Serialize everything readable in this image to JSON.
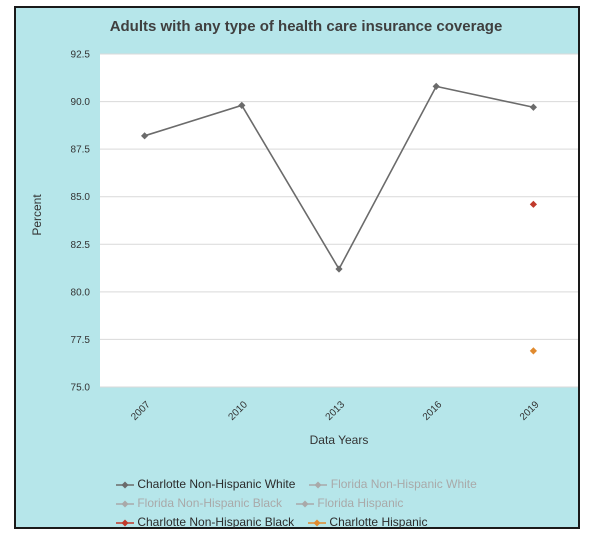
{
  "chart_data": {
    "type": "line",
    "title": "Adults with any type of health care insurance coverage",
    "xlabel": "Data Years",
    "ylabel": "Percent",
    "categories": [
      "2007",
      "2010",
      "2013",
      "2016",
      "2019"
    ],
    "y_ticks": [
      "92.5",
      "90.0",
      "87.5",
      "85.0",
      "82.5",
      "80.0",
      "77.5",
      "75.0"
    ],
    "ylim": [
      75.0,
      92.5
    ],
    "grid": true,
    "legend_position": "bottom",
    "series": [
      {
        "name": "Charlotte Non-Hispanic White",
        "color": "#6b6b6b",
        "values": [
          88.2,
          89.8,
          81.2,
          90.8,
          89.7
        ],
        "legend_active": true
      },
      {
        "name": "Florida Non-Hispanic White",
        "color": "#a9a9a9",
        "values": [
          null,
          null,
          null,
          null,
          null
        ],
        "legend_active": false
      },
      {
        "name": "Florida Non-Hispanic Black",
        "color": "#a9a9a9",
        "values": [
          null,
          null,
          null,
          null,
          null
        ],
        "legend_active": false
      },
      {
        "name": "Florida Hispanic",
        "color": "#a9a9a9",
        "values": [
          null,
          null,
          null,
          null,
          null
        ],
        "legend_active": false
      },
      {
        "name": "Charlotte Non-Hispanic Black",
        "color": "#c0392b",
        "values": [
          null,
          null,
          null,
          null,
          84.6
        ],
        "legend_active": true
      },
      {
        "name": "Charlotte Hispanic",
        "color": "#e08a2e",
        "values": [
          null,
          null,
          null,
          null,
          76.9
        ],
        "legend_active": true
      }
    ]
  },
  "legend_rows": [
    [
      0,
      1
    ],
    [
      2,
      3
    ],
    [
      4,
      5
    ]
  ],
  "colors": {
    "background": "#b6e6ea",
    "plot_background": "#ffffff",
    "gridline": "#d9d9d9",
    "frame_border": "#1a1a1a",
    "inactive_legend_text": "#a9a9a9"
  },
  "icons": {
    "legend_marker": "diamond-icon"
  }
}
